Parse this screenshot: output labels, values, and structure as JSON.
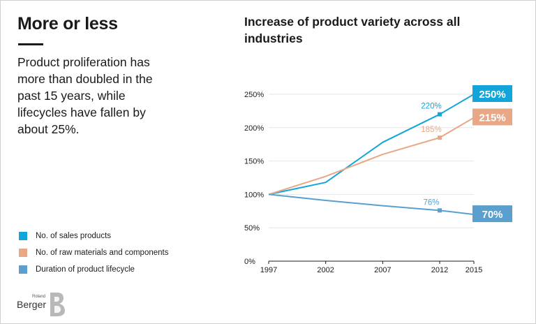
{
  "headline": "More or less",
  "body": "Product proliferation has more than doubled in the past 15 years, while lifecycles have fallen by about 25%.",
  "brand": {
    "small": "Roland",
    "word": "Berger"
  },
  "chart_data": {
    "type": "line",
    "title": "Increase of product variety across all industries",
    "x": [
      1997,
      2002,
      2007,
      2012,
      2015
    ],
    "x_tick_labels": [
      "1997",
      "2002",
      "2007",
      "2012",
      "2015"
    ],
    "y_ticks": [
      0,
      50,
      100,
      150,
      200,
      250
    ],
    "y_tick_labels": [
      "0%",
      "50%",
      "100%",
      "150%",
      "200%",
      "250%"
    ],
    "ylim": [
      0,
      250
    ],
    "grid": "horizontal",
    "legend_position": "bottom-left",
    "series": [
      {
        "name": "No. of sales products",
        "color": "#12a5d9",
        "values": [
          100,
          118,
          178,
          220,
          250
        ],
        "point_label": "220%",
        "end_label": "250%"
      },
      {
        "name": "No. of raw materials and components",
        "color": "#e8a888",
        "values": [
          100,
          127,
          160,
          185,
          215
        ],
        "point_label": "185%",
        "end_label": "215%"
      },
      {
        "name": "Duration of product lifecycle",
        "color": "#5b9fcf",
        "values": [
          100,
          91,
          83,
          76,
          70
        ],
        "point_label": "76%",
        "end_label": "70%"
      }
    ]
  }
}
